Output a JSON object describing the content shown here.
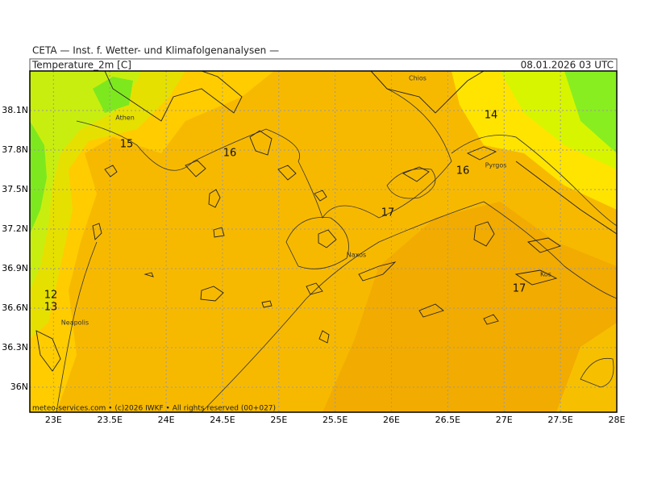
{
  "header": {
    "title": "CETA — Inst. f. Wetter- und Klimafolgenanalysen —",
    "field": "Temperature_2m [C]",
    "valid_time": "08.01.2026 03 UTC"
  },
  "map": {
    "lon_range": [
      22.79,
      28
    ],
    "lat_range": [
      35.81,
      38.4
    ],
    "lat_ticks": [
      {
        "value": 38.1,
        "label": "38.1N"
      },
      {
        "value": 37.8,
        "label": "37.8N"
      },
      {
        "value": 37.5,
        "label": "37.5N"
      },
      {
        "value": 37.2,
        "label": "37.2N"
      },
      {
        "value": 36.9,
        "label": "36.9N"
      },
      {
        "value": 36.6,
        "label": "36.6N"
      },
      {
        "value": 36.3,
        "label": "36.3N"
      },
      {
        "value": 36,
        "label": "36N"
      }
    ],
    "lon_ticks": [
      {
        "value": 23,
        "label": "23E"
      },
      {
        "value": 23.5,
        "label": "23.5E"
      },
      {
        "value": 24,
        "label": "24E"
      },
      {
        "value": 24.5,
        "label": "24.5E"
      },
      {
        "value": 25,
        "label": "25E"
      },
      {
        "value": 25.5,
        "label": "25.5E"
      },
      {
        "value": 26,
        "label": "26E"
      },
      {
        "value": 26.5,
        "label": "26.5E"
      },
      {
        "value": 27,
        "label": "27E"
      },
      {
        "value": 27.5,
        "label": "27.5E"
      },
      {
        "value": 28,
        "label": "28E"
      }
    ],
    "contour_labels": [
      15,
      16,
      17,
      14,
      16,
      17,
      12,
      13
    ],
    "places": [
      "Athen",
      "Chios",
      "Pyrgos",
      "Naxos",
      "Kos",
      "Neapolis"
    ]
  },
  "footer": "meteo-services.com • (c)2026 IWKF • All rights reserved (00+027)"
}
